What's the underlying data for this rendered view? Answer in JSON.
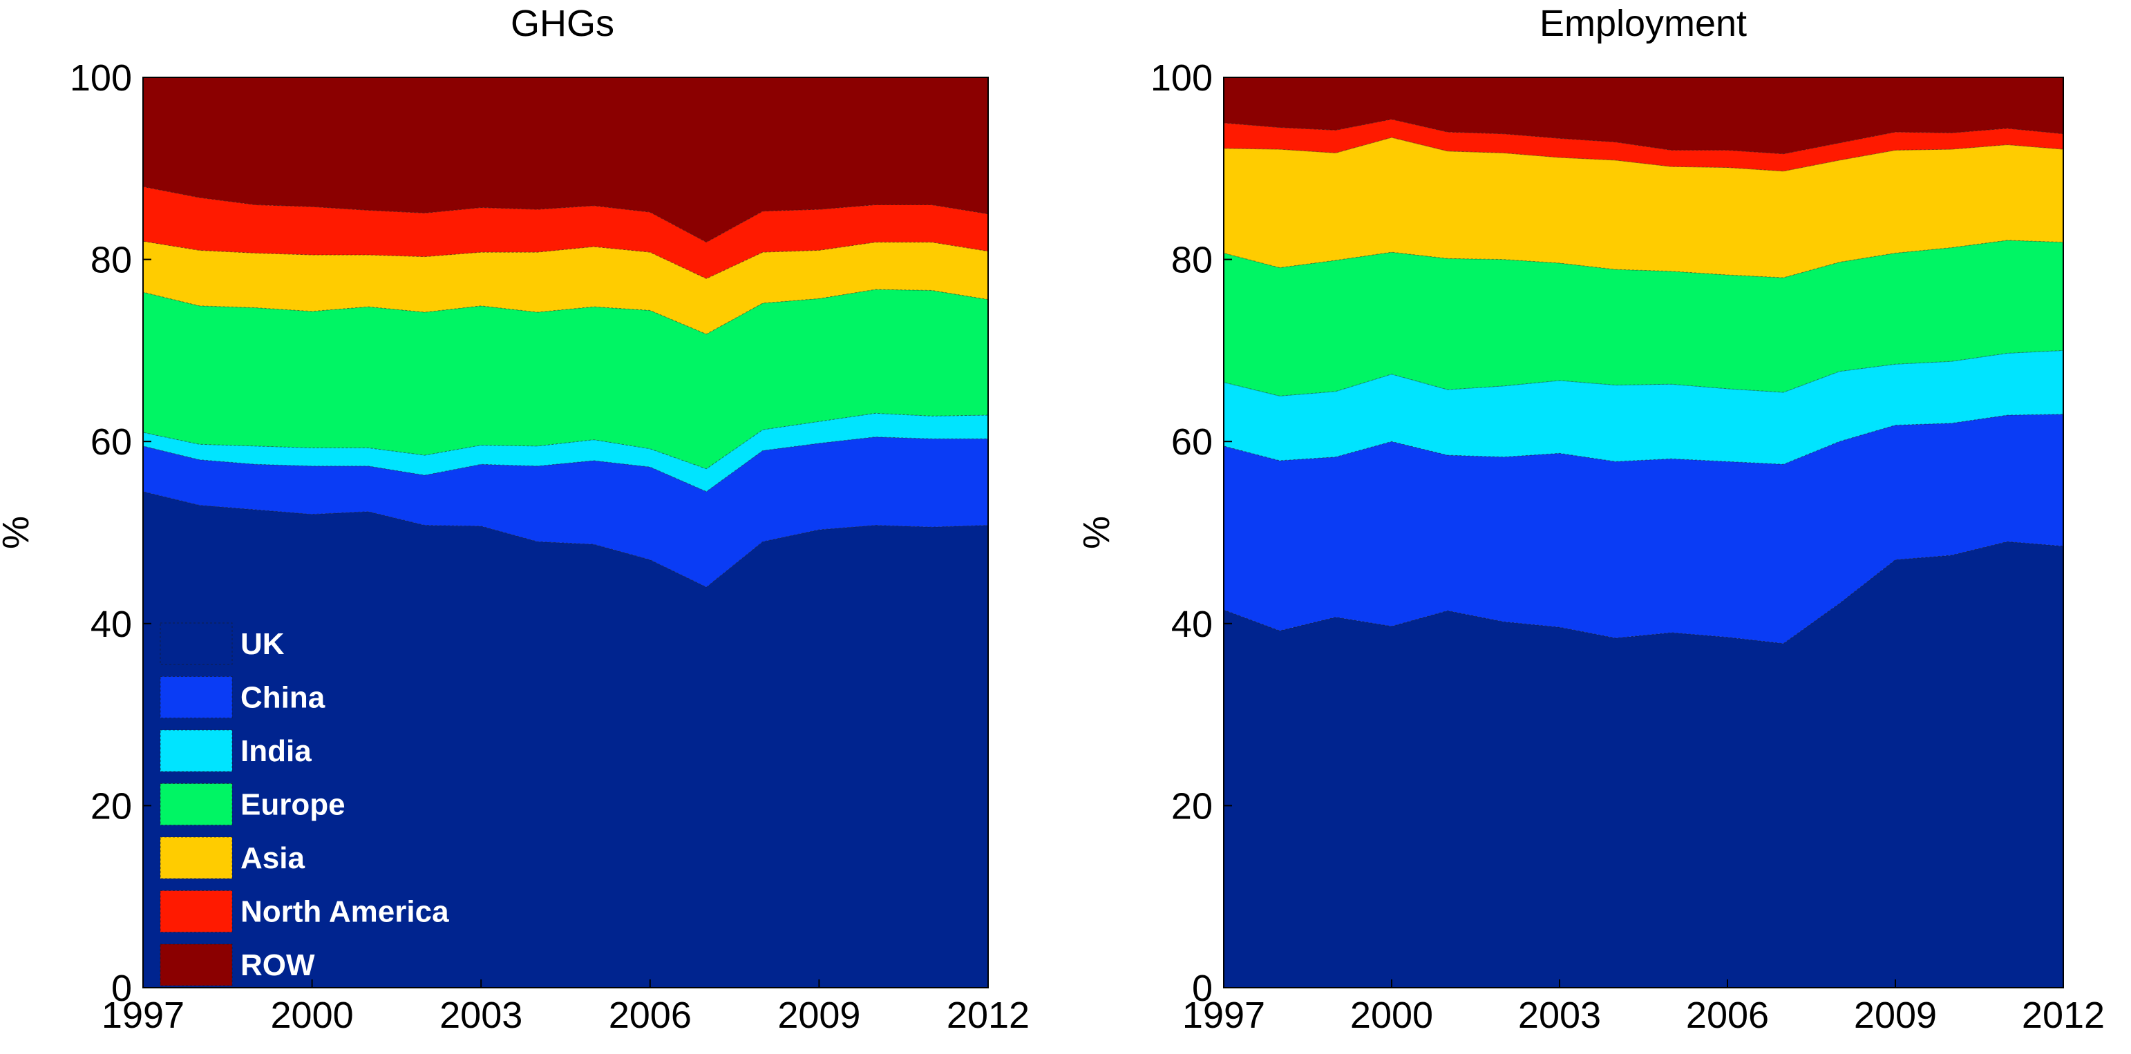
{
  "colors": {
    "UK": "#00248f",
    "China": "#0a3cf5",
    "India": "#00e4ff",
    "Europe": "#00f564",
    "Asia": "#ffcc00",
    "North America": "#ff1a00",
    "ROW": "#8b0000"
  },
  "legend": {
    "entries": [
      "UK",
      "China",
      "India",
      "Europe",
      "Asia",
      "North America",
      "ROW"
    ]
  },
  "chart_data": [
    {
      "type": "area",
      "stacked": true,
      "title": "GHGs",
      "ylabel": "%",
      "xlabel": "",
      "x": [
        1997,
        1998,
        1999,
        2000,
        2001,
        2002,
        2003,
        2004,
        2005,
        2006,
        2007,
        2008,
        2009,
        2010,
        2011,
        2012
      ],
      "xticks": [
        "1997",
        "2000",
        "2003",
        "2006",
        "2009",
        "2012"
      ],
      "yticks": [
        "0",
        "20",
        "40",
        "60",
        "80",
        "100"
      ],
      "xlim": [
        1997,
        2012
      ],
      "ylim": [
        0,
        100
      ],
      "legend_position": "bottom-left",
      "series": [
        {
          "name": "UK",
          "values": [
            54.5,
            53.0,
            52.5,
            52.0,
            52.3,
            50.8,
            50.7,
            49.0,
            48.7,
            47.0,
            44.0,
            49.0,
            50.3,
            50.8,
            50.6,
            50.8
          ]
        },
        {
          "name": "China",
          "values": [
            5.0,
            5.0,
            5.0,
            5.3,
            5.0,
            5.5,
            6.8,
            8.3,
            9.2,
            10.2,
            10.5,
            10.0,
            9.5,
            9.7,
            9.7,
            9.5
          ]
        },
        {
          "name": "India",
          "values": [
            1.5,
            1.7,
            2.0,
            2.0,
            2.0,
            2.2,
            2.1,
            2.2,
            2.3,
            2.0,
            2.5,
            2.3,
            2.4,
            2.6,
            2.5,
            2.6
          ]
        },
        {
          "name": "Europe",
          "values": [
            15.4,
            15.2,
            15.2,
            15.0,
            15.5,
            15.7,
            15.3,
            14.7,
            14.6,
            15.2,
            14.8,
            13.9,
            13.5,
            13.6,
            13.8,
            12.7
          ]
        },
        {
          "name": "Asia",
          "values": [
            5.6,
            6.1,
            6.0,
            6.2,
            5.7,
            6.1,
            5.9,
            6.6,
            6.6,
            6.4,
            6.1,
            5.6,
            5.3,
            5.2,
            5.3,
            5.3
          ]
        },
        {
          "name": "North America",
          "values": [
            6.0,
            5.8,
            5.3,
            5.3,
            4.9,
            4.8,
            4.9,
            4.7,
            4.5,
            4.4,
            4.0,
            4.5,
            4.5,
            4.1,
            4.1,
            4.1
          ]
        },
        {
          "name": "ROW",
          "values": [
            12.0,
            13.2,
            14.0,
            14.2,
            14.6,
            14.9,
            14.3,
            14.5,
            14.1,
            14.8,
            18.1,
            14.7,
            14.5,
            14.0,
            14.0,
            15.0
          ]
        }
      ]
    },
    {
      "type": "area",
      "stacked": true,
      "title": "Employment",
      "ylabel": "%",
      "xlabel": "",
      "x": [
        1997,
        1998,
        1999,
        2000,
        2001,
        2002,
        2003,
        2004,
        2005,
        2006,
        2007,
        2008,
        2009,
        2010,
        2011,
        2012
      ],
      "xticks": [
        "1997",
        "2000",
        "2003",
        "2006",
        "2009",
        "2012"
      ],
      "yticks": [
        "0",
        "20",
        "40",
        "60",
        "80",
        "100"
      ],
      "xlim": [
        1997,
        2012
      ],
      "ylim": [
        0,
        100
      ],
      "legend_position": "none",
      "series": [
        {
          "name": "UK",
          "values": [
            41.5,
            39.2,
            40.7,
            39.7,
            41.4,
            40.2,
            39.6,
            38.4,
            39.0,
            38.5,
            37.8,
            42.2,
            47.0,
            47.5,
            49.0,
            48.5
          ]
        },
        {
          "name": "China",
          "values": [
            18.0,
            18.7,
            17.6,
            20.3,
            17.1,
            18.1,
            19.1,
            19.4,
            19.1,
            19.3,
            19.7,
            17.8,
            14.8,
            14.5,
            13.9,
            14.5
          ]
        },
        {
          "name": "India",
          "values": [
            7.0,
            7.1,
            7.2,
            7.4,
            7.2,
            7.8,
            8.0,
            8.4,
            8.2,
            8.0,
            7.9,
            7.7,
            6.7,
            6.8,
            6.8,
            7.0
          ]
        },
        {
          "name": "Europe",
          "values": [
            14.2,
            14.1,
            14.4,
            13.4,
            14.4,
            13.9,
            12.9,
            12.7,
            12.4,
            12.5,
            12.6,
            12.0,
            12.2,
            12.5,
            12.4,
            11.9
          ]
        },
        {
          "name": "Asia",
          "values": [
            11.5,
            13.0,
            11.8,
            12.6,
            11.8,
            11.7,
            11.6,
            12.0,
            11.5,
            11.8,
            11.7,
            11.2,
            11.3,
            10.8,
            10.5,
            10.2
          ]
        },
        {
          "name": "North America",
          "values": [
            2.8,
            2.4,
            2.5,
            2.0,
            2.1,
            2.1,
            2.1,
            2.0,
            1.8,
            1.9,
            1.9,
            1.9,
            2.0,
            1.8,
            1.8,
            1.7
          ]
        },
        {
          "name": "ROW",
          "values": [
            5.0,
            5.5,
            5.8,
            4.6,
            6.0,
            6.2,
            6.7,
            7.1,
            8.0,
            8.0,
            8.4,
            7.2,
            6.0,
            6.1,
            5.6,
            6.2
          ]
        }
      ]
    }
  ]
}
